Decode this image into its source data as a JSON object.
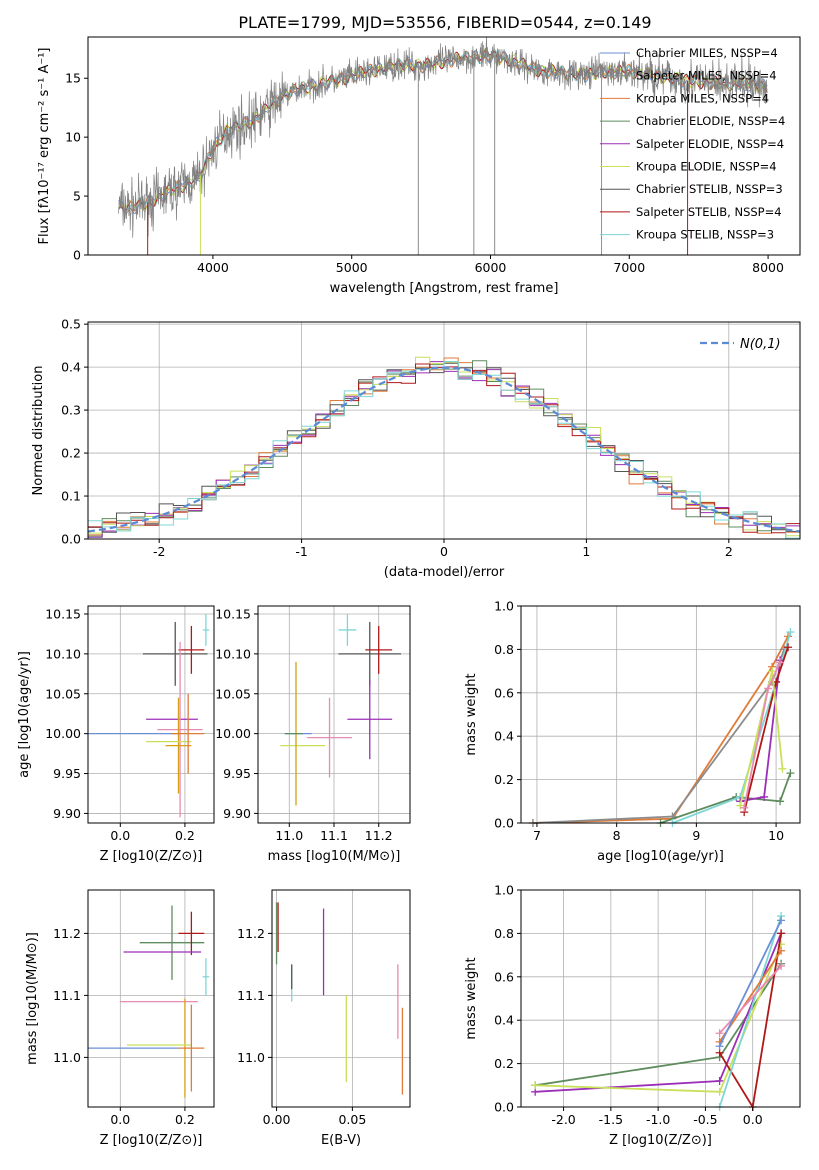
{
  "figure": {
    "title": "PLATE=1799, MJD=53556, FIBERID=0544, z=0.149"
  },
  "colors": {
    "chabrier_miles": "#6b8fd6",
    "salpeter_miles": "#8c8c8c",
    "kroupa_miles": "#e07b39",
    "chabrier_elodie": "#5e8c5e",
    "salpeter_elodie": "#9b2fb8",
    "kroupa_elodie": "#c8e05a",
    "chabrier_stelib": "#555555",
    "salpeter_stelib": "#b01818",
    "kroupa_stelib": "#7fd6d6",
    "pink": "#e88ab0",
    "gold": "#d4a017",
    "normal_curve": "#5b8ad6"
  },
  "chart_data": [
    {
      "id": "spectrum",
      "type": "line",
      "xlabel": "wavelength [Angstrom, rest frame]",
      "ylabel": "Flux [fλ10⁻¹⁷ erg cm⁻² s⁻¹ A⁻¹]",
      "xlim": [
        3100,
        8230
      ],
      "ylim": [
        0,
        18.5
      ],
      "xticks": [
        4000,
        5000,
        6000,
        7000,
        8000
      ],
      "yticks": [
        0,
        5,
        10,
        15
      ],
      "grid": false,
      "legend_position": "top-right",
      "legend": [
        "Chabrier MILES, N_SSP=4",
        "Salpeter MILES, N_SSP=4",
        "Kroupa MILES, N_SSP=4",
        "Chabrier ELODIE, N_SSP=4",
        "Salpeter ELODIE, N_SSP=4",
        "Kroupa ELODIE, N_SSP=4",
        "Chabrier STELIB, N_SSP=3",
        "Salpeter STELIB, N_SSP=4",
        "Kroupa STELIB, N_SSP=3"
      ],
      "continuum": {
        "x": [
          3300,
          3400,
          3500,
          3600,
          3700,
          3800,
          3900,
          4000,
          4100,
          4200,
          4300,
          4400,
          4500,
          4600,
          4700,
          4800,
          4900,
          5000,
          5100,
          5200,
          5300,
          5400,
          5500,
          5600,
          5700,
          5800,
          5900,
          6000,
          6100,
          6200,
          6300,
          6400,
          6500,
          6600,
          6700,
          6800,
          6900,
          7000,
          7100,
          7200,
          7300,
          7400,
          7500,
          7600,
          7700,
          7800,
          7900,
          8000
        ],
        "y": [
          4.2,
          4.0,
          4.3,
          4.8,
          5.5,
          6.0,
          6.5,
          9.0,
          10.5,
          11.0,
          11.5,
          12.5,
          13.5,
          14.0,
          14.3,
          14.6,
          14.8,
          15.2,
          15.5,
          15.8,
          16.0,
          16.2,
          16.0,
          16.3,
          16.5,
          16.7,
          16.8,
          16.9,
          16.7,
          16.3,
          15.8,
          15.6,
          15.5,
          15.4,
          15.3,
          15.6,
          15.5,
          15.6,
          15.4,
          15.2,
          15.0,
          14.8,
          14.7,
          14.6,
          14.5,
          14.6,
          14.4,
          14.3
        ]
      }
    },
    {
      "id": "residuals",
      "type": "line",
      "xlabel": "(data-model)/error",
      "ylabel": "Normed distribution",
      "xlim": [
        -2.5,
        2.5
      ],
      "ylim": [
        0,
        0.505
      ],
      "xticks": [
        -2,
        -1,
        0,
        1,
        2
      ],
      "yticks": [
        0.0,
        0.1,
        0.2,
        0.3,
        0.4,
        0.5
      ],
      "grid": true,
      "legend_position": "top-right",
      "legend": [
        "N(0,1)"
      ],
      "normal_curve": {
        "mean": 0,
        "sigma": 1,
        "style": "dashed"
      }
    },
    {
      "id": "age_vs_Z",
      "type": "scatter",
      "xlabel": "Z [log10(Z/Z⊙)]",
      "ylabel": "age  [log10(age/yr)]",
      "xlim": [
        -0.1,
        0.29
      ],
      "ylim": [
        9.888,
        10.16
      ],
      "xticks": [
        0.0,
        0.2
      ],
      "yticks": [
        9.9,
        9.95,
        10.0,
        10.05,
        10.1,
        10.15
      ],
      "grid": true,
      "points": [
        {
          "series": "chabrier_miles",
          "x": 0.04,
          "y": 10.0,
          "xerr": 0.14,
          "yerr": 0.0
        },
        {
          "series": "chabrier_stelib",
          "x": 0.17,
          "y": 10.1,
          "xerr": 0.1,
          "yerr": 0.04
        },
        {
          "series": "salpeter_stelib",
          "x": 0.22,
          "y": 10.105,
          "xerr": 0.04,
          "yerr": 0.03
        },
        {
          "series": "kroupa_stelib",
          "x": 0.265,
          "y": 10.13,
          "xerr": 0.01,
          "yerr": 0.02
        },
        {
          "series": "salpeter_elodie",
          "x": 0.16,
          "y": 10.018,
          "xerr": 0.08,
          "yerr": 0.0
        },
        {
          "series": "pink",
          "x": 0.185,
          "y": 10.005,
          "xerr": 0.07,
          "yerr": 0.11
        },
        {
          "series": "gold",
          "x": 0.18,
          "y": 9.985,
          "xerr": 0.04,
          "yerr": 0.06
        },
        {
          "series": "kroupa_elodie",
          "x": 0.15,
          "y": 9.99,
          "xerr": 0.07,
          "yerr": 0.0
        },
        {
          "series": "kroupa_miles",
          "x": 0.21,
          "y": 10.0,
          "xerr": 0.05,
          "yerr": 0.05
        }
      ]
    },
    {
      "id": "age_vs_mass",
      "type": "scatter",
      "xlabel": "mass [log10(M/M⊙)]",
      "ylabel": "",
      "xlim": [
        10.93,
        11.27
      ],
      "ylim": [
        9.888,
        10.16
      ],
      "xticks": [
        11.0,
        11.1,
        11.2
      ],
      "yticks": [
        9.9,
        9.95,
        10.0,
        10.05,
        10.1,
        10.15
      ],
      "grid": true,
      "points": [
        {
          "series": "chabrier_miles",
          "x": 11.02,
          "y": 10.0,
          "xerr": 0.03,
          "yerr": 0.0
        },
        {
          "series": "chabrier_stelib",
          "x": 11.18,
          "y": 10.1,
          "xerr": 0.07,
          "yerr": 0.04
        },
        {
          "series": "salpeter_stelib",
          "x": 11.2,
          "y": 10.105,
          "xerr": 0.03,
          "yerr": 0.03
        },
        {
          "series": "kroupa_stelib",
          "x": 11.13,
          "y": 10.13,
          "xerr": 0.02,
          "yerr": 0.02
        },
        {
          "series": "salpeter_elodie",
          "x": 11.18,
          "y": 10.018,
          "xerr": 0.05,
          "yerr": 0.05
        },
        {
          "series": "pink",
          "x": 11.09,
          "y": 9.995,
          "xerr": 0.05,
          "yerr": 0.05
        },
        {
          "series": "kroupa_elodie",
          "x": 11.03,
          "y": 9.985,
          "xerr": 0.05,
          "yerr": 0.0
        },
        {
          "series": "gold",
          "x": 11.015,
          "y": 10.0,
          "xerr": 0.0,
          "yerr": 0.09
        },
        {
          "series": "chabrier_elodie",
          "x": 11.01,
          "y": 10.0,
          "xerr": 0.02,
          "yerr": 0.0
        }
      ]
    },
    {
      "id": "massweight_vs_age",
      "type": "line",
      "xlabel": "age  [log10(age/yr)]",
      "ylabel": "mass weight",
      "xlim": [
        6.8,
        10.3
      ],
      "ylim": [
        0,
        1.0
      ],
      "xticks": [
        7,
        8,
        9,
        10
      ],
      "yticks": [
        0.0,
        0.2,
        0.4,
        0.6,
        0.8,
        1.0
      ],
      "grid": true,
      "series": [
        {
          "id": "kroupa_miles",
          "x": [
            6.95,
            8.7,
            9.95,
            10.15
          ],
          "y": [
            0.0,
            0.02,
            0.72,
            0.86
          ]
        },
        {
          "id": "salpeter_miles",
          "x": [
            6.95,
            8.7,
            9.95,
            10.1
          ],
          "y": [
            0.0,
            0.03,
            0.65,
            0.8
          ]
        },
        {
          "id": "chabrier_elodie",
          "x": [
            8.55,
            9.5,
            10.05,
            10.18
          ],
          "y": [
            0.0,
            0.12,
            0.1,
            0.23
          ]
        },
        {
          "id": "kroupa_stelib",
          "x": [
            8.7,
            9.55,
            10.0,
            10.18
          ],
          "y": [
            0.0,
            0.12,
            0.65,
            0.88
          ]
        },
        {
          "id": "salpeter_elodie",
          "x": [
            9.55,
            9.85,
            10.05
          ],
          "y": [
            0.1,
            0.12,
            0.75
          ]
        },
        {
          "id": "salpeter_stelib",
          "x": [
            9.6,
            10.0,
            10.15
          ],
          "y": [
            0.05,
            0.65,
            0.81
          ]
        },
        {
          "id": "kroupa_elodie",
          "x": [
            9.55,
            9.95,
            10.08
          ],
          "y": [
            0.08,
            0.7,
            0.25
          ]
        },
        {
          "id": "pink",
          "x": [
            9.6,
            9.9,
            10.05
          ],
          "y": [
            0.07,
            0.62,
            0.74
          ]
        }
      ]
    },
    {
      "id": "mass_vs_Z",
      "type": "scatter",
      "xlabel": "Z [log10(Z/Z⊙)]",
      "ylabel": "mass [log10(M/M⊙)]",
      "xlim": [
        -0.1,
        0.29
      ],
      "ylim": [
        10.92,
        11.27
      ],
      "xticks": [
        0.0,
        0.2
      ],
      "yticks": [
        11.0,
        11.1,
        11.2
      ],
      "grid": true,
      "points": [
        {
          "series": "chabrier_miles",
          "x": 0.04,
          "y": 11.015,
          "xerr": 0.14,
          "yerr": 0.0
        },
        {
          "series": "chabrier_elodie",
          "x": 0.16,
          "y": 11.185,
          "xerr": 0.1,
          "yerr": 0.06
        },
        {
          "series": "salpeter_stelib",
          "x": 0.22,
          "y": 11.2,
          "xerr": 0.04,
          "yerr": 0.035
        },
        {
          "series": "kroupa_stelib",
          "x": 0.265,
          "y": 11.13,
          "xerr": 0.01,
          "yerr": 0.03
        },
        {
          "series": "salpeter_elodie",
          "x": 0.13,
          "y": 11.17,
          "xerr": 0.12,
          "yerr": 0.0
        },
        {
          "series": "pink",
          "x": 0.12,
          "y": 11.09,
          "xerr": 0.12,
          "yerr": 0.0
        },
        {
          "series": "gold",
          "x": 0.2,
          "y": 11.015,
          "xerr": 0.0,
          "yerr": 0.08
        },
        {
          "series": "kroupa_elodie",
          "x": 0.12,
          "y": 11.02,
          "xerr": 0.1,
          "yerr": 0.0
        },
        {
          "series": "kroupa_miles",
          "x": 0.22,
          "y": 11.015,
          "xerr": 0.04,
          "yerr": 0.07
        }
      ]
    },
    {
      "id": "mass_vs_ebv",
      "type": "scatter",
      "xlabel": "E(B-V)",
      "ylabel": "",
      "xlim": [
        -0.003,
        0.088
      ],
      "ylim": [
        10.92,
        11.27
      ],
      "xticks": [
        0.0,
        0.05
      ],
      "yticks": [
        11.0,
        11.1,
        11.2
      ],
      "grid": true,
      "points": [
        {
          "series": "chabrier_elodie",
          "x": 0.0,
          "y": 11.2,
          "xerr": 0.0,
          "yerr": 0.05
        },
        {
          "series": "salpeter_stelib",
          "x": 0.001,
          "y": 11.21,
          "xerr": 0.0,
          "yerr": 0.04
        },
        {
          "series": "kroupa_stelib",
          "x": 0.01,
          "y": 11.12,
          "xerr": 0.0,
          "yerr": 0.03
        },
        {
          "series": "chabrier_stelib",
          "x": 0.01,
          "y": 11.13,
          "xerr": 0.0,
          "yerr": 0.02
        },
        {
          "series": "salpeter_elodie",
          "x": 0.031,
          "y": 11.17,
          "xerr": 0.0,
          "yerr": 0.07
        },
        {
          "series": "kroupa_elodie",
          "x": 0.046,
          "y": 11.03,
          "xerr": 0.0,
          "yerr": 0.07
        },
        {
          "series": "pink",
          "x": 0.08,
          "y": 11.09,
          "xerr": 0.0,
          "yerr": 0.06
        },
        {
          "series": "kroupa_miles",
          "x": 0.083,
          "y": 11.01,
          "xerr": 0.0,
          "yerr": 0.07
        }
      ]
    },
    {
      "id": "massweight_vs_Z",
      "type": "line",
      "xlabel": "Z [log10(Z/Z⊙)]",
      "ylabel": "mass weight",
      "xlim": [
        -2.45,
        0.5
      ],
      "ylim": [
        0,
        1.0
      ],
      "xticks": [
        -2.0,
        -1.5,
        -1.0,
        -0.5,
        0.0
      ],
      "yticks": [
        0.0,
        0.2,
        0.4,
        0.6,
        0.8,
        1.0
      ],
      "grid": true,
      "series": [
        {
          "id": "chabrier_elodie",
          "x": [
            -2.3,
            -0.35,
            0.3
          ],
          "y": [
            0.1,
            0.23,
            0.66
          ]
        },
        {
          "id": "salpeter_elodie",
          "x": [
            -2.3,
            -0.35,
            0.3
          ],
          "y": [
            0.07,
            0.12,
            0.8
          ]
        },
        {
          "id": "kroupa_elodie",
          "x": [
            -2.3,
            -0.35,
            0.3
          ],
          "y": [
            0.1,
            0.07,
            0.75
          ]
        },
        {
          "id": "salpeter_stelib",
          "x": [
            -0.35,
            0.0,
            0.3
          ],
          "y": [
            0.25,
            0.0,
            0.8
          ]
        },
        {
          "id": "kroupa_stelib",
          "x": [
            -0.35,
            0.3
          ],
          "y": [
            0.0,
            0.88
          ]
        },
        {
          "id": "kroupa_miles",
          "x": [
            -0.35,
            0.3
          ],
          "y": [
            0.3,
            0.72
          ]
        },
        {
          "id": "pink",
          "x": [
            -0.35,
            0.3
          ],
          "y": [
            0.34,
            0.65
          ]
        },
        {
          "id": "chabrier_miles",
          "x": [
            -0.35,
            0.3
          ],
          "y": [
            0.28,
            0.86
          ]
        }
      ]
    }
  ]
}
